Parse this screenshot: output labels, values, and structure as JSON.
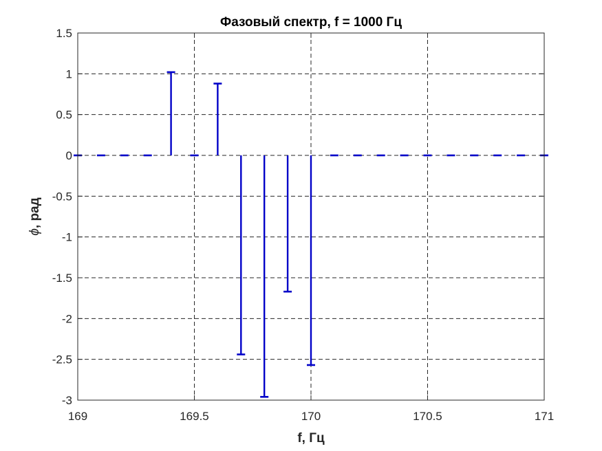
{
  "chart_data": {
    "type": "stem",
    "title": "Фазовый спектр, f = 1000 Гц",
    "xlabel": "f, Гц",
    "ylabel_symbol": "ϕ",
    "ylabel_rest": ", рад",
    "xlim": [
      169,
      171
    ],
    "ylim": [
      -3,
      1.5
    ],
    "xticks": [
      169,
      169.5,
      170,
      170.5,
      171
    ],
    "xtick_labels": [
      "169",
      "169.5",
      "170",
      "170.5",
      "171"
    ],
    "yticks": [
      1.5,
      1,
      0.5,
      0,
      -0.5,
      -1,
      -1.5,
      -2,
      -2.5,
      -3
    ],
    "ytick_labels": [
      "1.5",
      "1",
      "0.5",
      "0",
      "-0.5",
      "-1",
      "-1.5",
      "-2",
      "-2.5",
      "-3"
    ],
    "grid": true,
    "series_color": "#0000C8",
    "x": [
      169.0,
      169.1,
      169.2,
      169.3,
      169.4,
      169.5,
      169.6,
      169.7,
      169.8,
      169.9,
      170.0,
      170.1,
      170.2,
      170.3,
      170.4,
      170.5,
      170.6,
      170.7,
      170.8,
      170.9,
      171.0
    ],
    "y": [
      0,
      0,
      0,
      0,
      1.02,
      0,
      0.88,
      -2.44,
      -2.96,
      -1.67,
      -2.57,
      0,
      0,
      0,
      0,
      0,
      0,
      0,
      0,
      0,
      0
    ]
  }
}
